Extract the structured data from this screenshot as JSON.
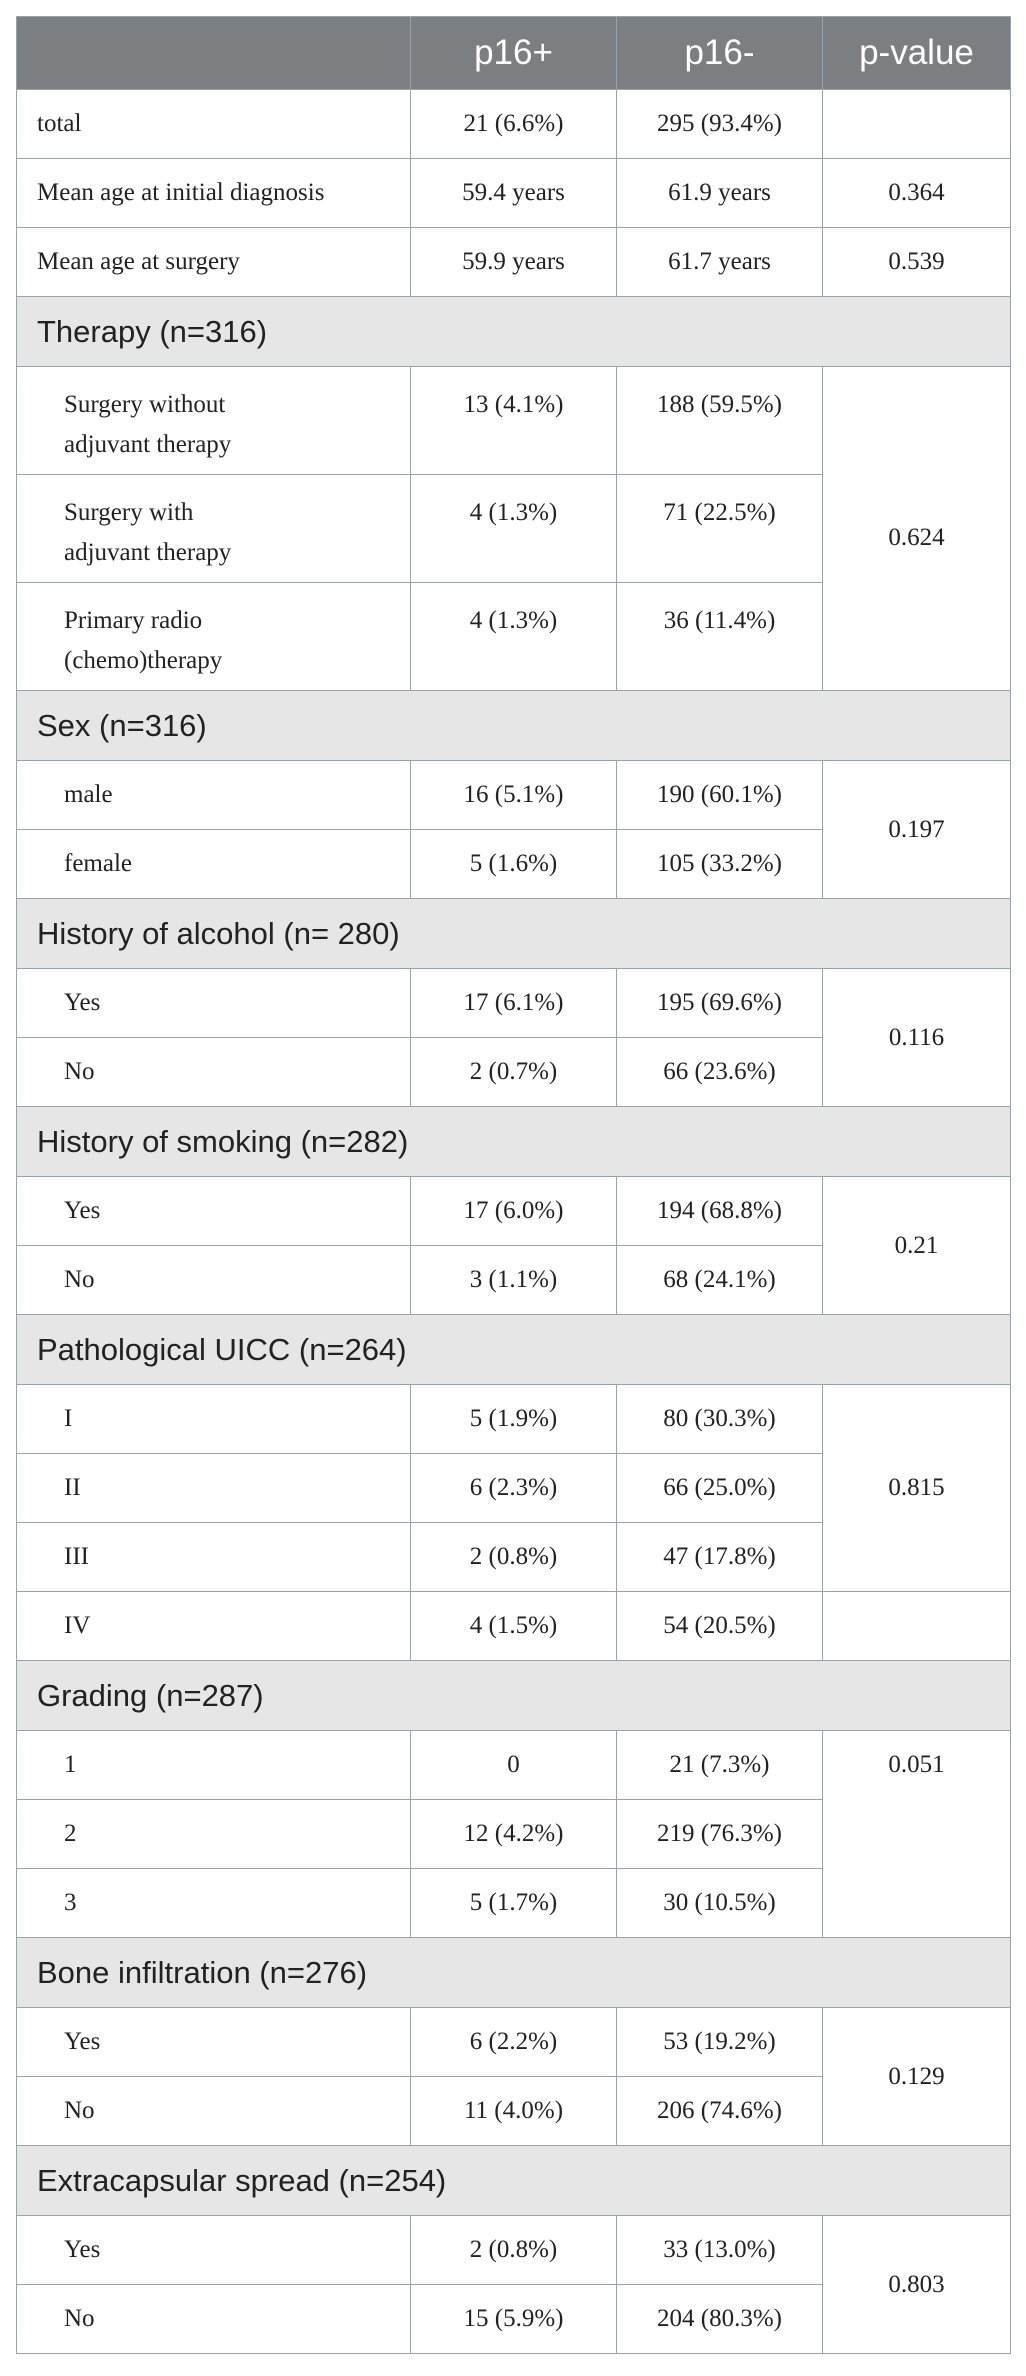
{
  "headers": [
    "",
    "p16+",
    "p16-",
    "p-value"
  ],
  "top_rows": [
    {
      "label": "total",
      "p16pos": "21 (6.6%)",
      "p16neg": "295 (93.4%)",
      "p": ""
    },
    {
      "label": "Mean age at initial diagnosis",
      "p16pos": "59.4 years",
      "p16neg": "61.9 years",
      "p": "0.364"
    },
    {
      "label": "Mean age at surgery",
      "p16pos": "59.9 years",
      "p16neg": "61.7 years",
      "p": "0.539"
    }
  ],
  "sections": {
    "therapy": {
      "title": "Therapy (n=316)",
      "p": "0.624",
      "rows": [
        {
          "label_1": "Surgery without",
          "label_2": "adjuvant therapy",
          "p16pos": "13 (4.1%)",
          "p16neg": "188 (59.5%)"
        },
        {
          "label_1": "Surgery with",
          "label_2": "adjuvant therapy",
          "p16pos": "4 (1.3%)",
          "p16neg": "71 (22.5%)"
        },
        {
          "label_1": "Primary radio",
          "label_2": "(chemo)therapy",
          "p16pos": "4 (1.3%)",
          "p16neg": "36 (11.4%)"
        }
      ]
    },
    "sex": {
      "title": "Sex (n=316)",
      "p": "0.197",
      "rows": [
        {
          "label": "male",
          "p16pos": "16 (5.1%)",
          "p16neg": "190 (60.1%)"
        },
        {
          "label": "female",
          "p16pos": "5 (1.6%)",
          "p16neg": "105 (33.2%)"
        }
      ]
    },
    "alcohol": {
      "title": "History of alcohol (n= 280)",
      "p": "0.116",
      "rows": [
        {
          "label": "Yes",
          "p16pos": "17 (6.1%)",
          "p16neg": "195 (69.6%)"
        },
        {
          "label": "No",
          "p16pos": "2 (0.7%)",
          "p16neg": "66 (23.6%)"
        }
      ]
    },
    "smoking": {
      "title": "History of smoking (n=282)",
      "p": "0.21",
      "rows": [
        {
          "label": "Yes",
          "p16pos": "17 (6.0%)",
          "p16neg": "194 (68.8%)"
        },
        {
          "label": "No",
          "p16pos": "3 (1.1%)",
          "p16neg": "68 (24.1%)"
        }
      ]
    },
    "uicc": {
      "title": "Pathological UICC (n=264)",
      "p": "0.815",
      "rows": [
        {
          "label": "I",
          "p16pos": "5 (1.9%)",
          "p16neg": "80 (30.3%)"
        },
        {
          "label": "II",
          "p16pos": "6 (2.3%)",
          "p16neg": "66 (25.0%)"
        },
        {
          "label": "III",
          "p16pos": "2 (0.8%)",
          "p16neg": "47 (17.8%)"
        },
        {
          "label": "IV",
          "p16pos": "4 (1.5%)",
          "p16neg": "54 (20.5%)"
        }
      ]
    },
    "grading": {
      "title": "Grading (n=287)",
      "p": "0.051",
      "rows": [
        {
          "label": "1",
          "p16pos": "0",
          "p16neg": "21 (7.3%)"
        },
        {
          "label": "2",
          "p16pos": "12 (4.2%)",
          "p16neg": "219 (76.3%)"
        },
        {
          "label": "3",
          "p16pos": "5 (1.7%)",
          "p16neg": "30 (10.5%)"
        }
      ]
    },
    "bone": {
      "title": "Bone infiltration (n=276)",
      "p": "0.129",
      "rows": [
        {
          "label": "Yes",
          "p16pos": "6 (2.2%)",
          "p16neg": "53 (19.2%)"
        },
        {
          "label": "No",
          "p16pos": "11 (4.0%)",
          "p16neg": "206 (74.6%)"
        }
      ]
    },
    "extracapsular": {
      "title": "Extracapsular spread (n=254)",
      "p": "0.803",
      "rows": [
        {
          "label": "Yes",
          "p16pos": "2 (0.8%)",
          "p16neg": "33 (13.0%)"
        },
        {
          "label": "No",
          "p16pos": "15 (5.9%)",
          "p16neg": "204 (80.3%)"
        }
      ]
    }
  }
}
